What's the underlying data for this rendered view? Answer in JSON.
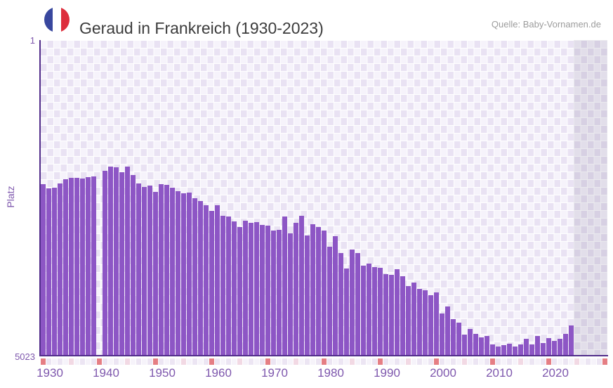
{
  "header": {
    "title": "Geraud in Frankreich (1930-2023)",
    "source": "Quelle: Baby-Vornamen.de",
    "flag_icon": "france-flag-circle-icon",
    "flag_colors": {
      "blue": "#38479e",
      "white": "#ffffff",
      "red": "#dd2d3c"
    }
  },
  "chart_data": {
    "type": "bar",
    "title": "Geraud in Frankreich (1930-2023)",
    "xlabel": "",
    "ylabel": "Platz",
    "y_axis": {
      "top_label": "1",
      "bottom_label": "5023",
      "min": 1,
      "max": 5023,
      "inverted": true
    },
    "x_ticks": [
      1930,
      1940,
      1950,
      1960,
      1970,
      1980,
      1990,
      2000,
      2010,
      2020
    ],
    "x_slot_range": [
      1929,
      2029
    ],
    "future_shaded_from": 2024,
    "missing_years": [
      1939
    ],
    "grid": "checkerboard",
    "legend": null,
    "years": [
      1929,
      1930,
      1931,
      1932,
      1933,
      1934,
      1935,
      1936,
      1937,
      1938,
      1939,
      1940,
      1941,
      1942,
      1943,
      1944,
      1945,
      1946,
      1947,
      1948,
      1949,
      1950,
      1951,
      1952,
      1953,
      1954,
      1955,
      1956,
      1957,
      1958,
      1959,
      1960,
      1961,
      1962,
      1963,
      1964,
      1965,
      1966,
      1967,
      1968,
      1969,
      1970,
      1971,
      1972,
      1973,
      1974,
      1975,
      1976,
      1977,
      1978,
      1979,
      1980,
      1981,
      1982,
      1983,
      1984,
      1985,
      1986,
      1987,
      1988,
      1989,
      1990,
      1991,
      1992,
      1993,
      1994,
      1995,
      1996,
      1997,
      1998,
      1999,
      2000,
      2001,
      2002,
      2003,
      2004,
      2005,
      2006,
      2007,
      2008,
      2009,
      2010,
      2011,
      2012,
      2013,
      2014,
      2015,
      2016,
      2017,
      2018,
      2019,
      2020,
      2021,
      2022,
      2023
    ],
    "ranks": [
      2300,
      2370,
      2350,
      2290,
      2215,
      2200,
      2195,
      2210,
      2190,
      2175,
      null,
      2090,
      2020,
      2025,
      2110,
      2020,
      2155,
      2290,
      2345,
      2320,
      2425,
      2300,
      2310,
      2355,
      2410,
      2445,
      2435,
      2525,
      2565,
      2635,
      2725,
      2635,
      2800,
      2815,
      2890,
      2980,
      2880,
      2920,
      2900,
      2950,
      2965,
      3040,
      3030,
      2815,
      3080,
      2915,
      2805,
      3120,
      2935,
      2985,
      3040,
      3300,
      3130,
      3395,
      3645,
      3340,
      3395,
      3600,
      3570,
      3620,
      3635,
      3735,
      3740,
      3655,
      3765,
      3920,
      3865,
      3965,
      3990,
      4070,
      4030,
      4360,
      4250,
      4455,
      4510,
      4700,
      4610,
      4685,
      4745,
      4715,
      4860,
      4890,
      4870,
      4845,
      4890,
      4860,
      4760,
      4850,
      4720,
      4835,
      4750,
      4800,
      4770,
      4690,
      4550
    ],
    "colors": {
      "bar": "#8d56c5",
      "axis_spine": "#512d8a",
      "tick_label": "#7e57ad",
      "plot_cell_a": "#e9e2f3",
      "plot_cell_b": "#f6f3fb",
      "decade_marker": "#e57e84",
      "half_decade_marker": "#f2d9e4",
      "year_cell_even": "#ece5f3",
      "year_cell_odd": "#f6f3fa"
    },
    "decade_marker_years": [
      1929,
      1939,
      1949,
      1959,
      1969,
      1979,
      1989,
      1999,
      2009,
      2019,
      2029
    ],
    "half_decade_marker_years": [
      1934,
      1944,
      1954,
      1964,
      1974,
      1984,
      1994,
      2004,
      2014,
      2024
    ]
  }
}
